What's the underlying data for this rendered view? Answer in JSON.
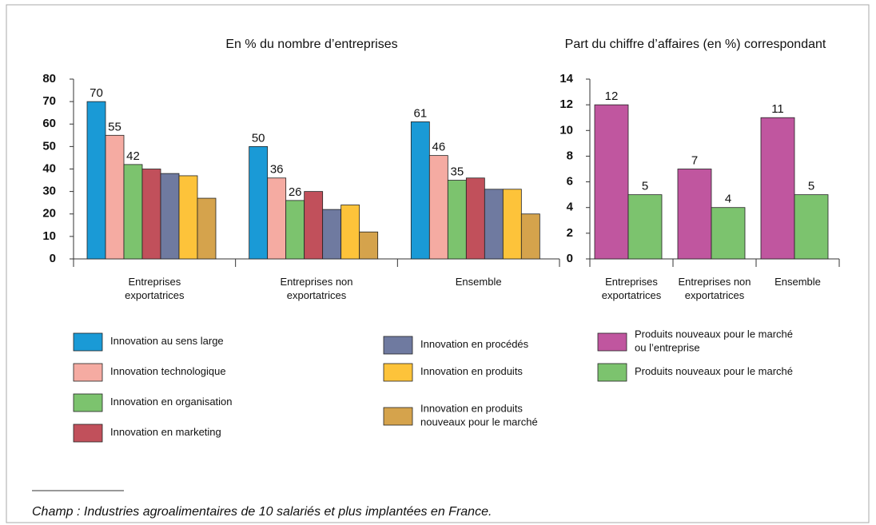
{
  "chart_data": [
    {
      "type": "bar",
      "title": "En % du nombre d’entreprises",
      "categories": [
        "Entreprises exportatrices",
        "Entreprises non exportatrices",
        "Ensemble"
      ],
      "ylim": [
        0,
        80
      ],
      "yticks": [
        0,
        10,
        20,
        30,
        40,
        50,
        60,
        70,
        80
      ],
      "series": [
        {
          "name": "Innovation au sens large",
          "color": "#1a9ad6",
          "values": [
            70,
            50,
            61
          ],
          "show_values": true
        },
        {
          "name": "Innovation technologique",
          "color": "#f5aba2",
          "values": [
            55,
            36,
            46
          ],
          "show_values": true
        },
        {
          "name": "Innovation en organisation",
          "color": "#7cc36e",
          "values": [
            42,
            26,
            35
          ],
          "show_values": true
        },
        {
          "name": "Innovation en marketing",
          "color": "#c1505b",
          "values": [
            40,
            30,
            36
          ]
        },
        {
          "name": "Innovation en procédés",
          "color": "#6f7aa0",
          "values": [
            38,
            22,
            31
          ]
        },
        {
          "name": "Innovation en produits",
          "color": "#fdc33a",
          "values": [
            37,
            24,
            31
          ]
        },
        {
          "name": "Innovation en produits nouveaux pour le marché",
          "color": "#d5a34c",
          "values": [
            27,
            12,
            20
          ]
        }
      ]
    },
    {
      "type": "bar",
      "title": "Part du chiffre d’affaires (en %) correspondant",
      "categories": [
        "Entreprises exportatrices",
        "Entreprises non exportatrices",
        "Ensemble"
      ],
      "ylim": [
        0,
        14
      ],
      "yticks": [
        0,
        2,
        4,
        6,
        8,
        10,
        12,
        14
      ],
      "series": [
        {
          "name": "Produits nouveaux pour le marché ou l’entreprise",
          "color": "#c0569f",
          "values": [
            12,
            7,
            11
          ],
          "show_values": true
        },
        {
          "name": "Produits nouveaux pour le marché",
          "color": "#7cc36e",
          "values": [
            5,
            4,
            5
          ],
          "show_values": true
        }
      ]
    }
  ],
  "footnote": "Champ : Industries agroalimentaires de 10 salariés et plus implantées en France."
}
